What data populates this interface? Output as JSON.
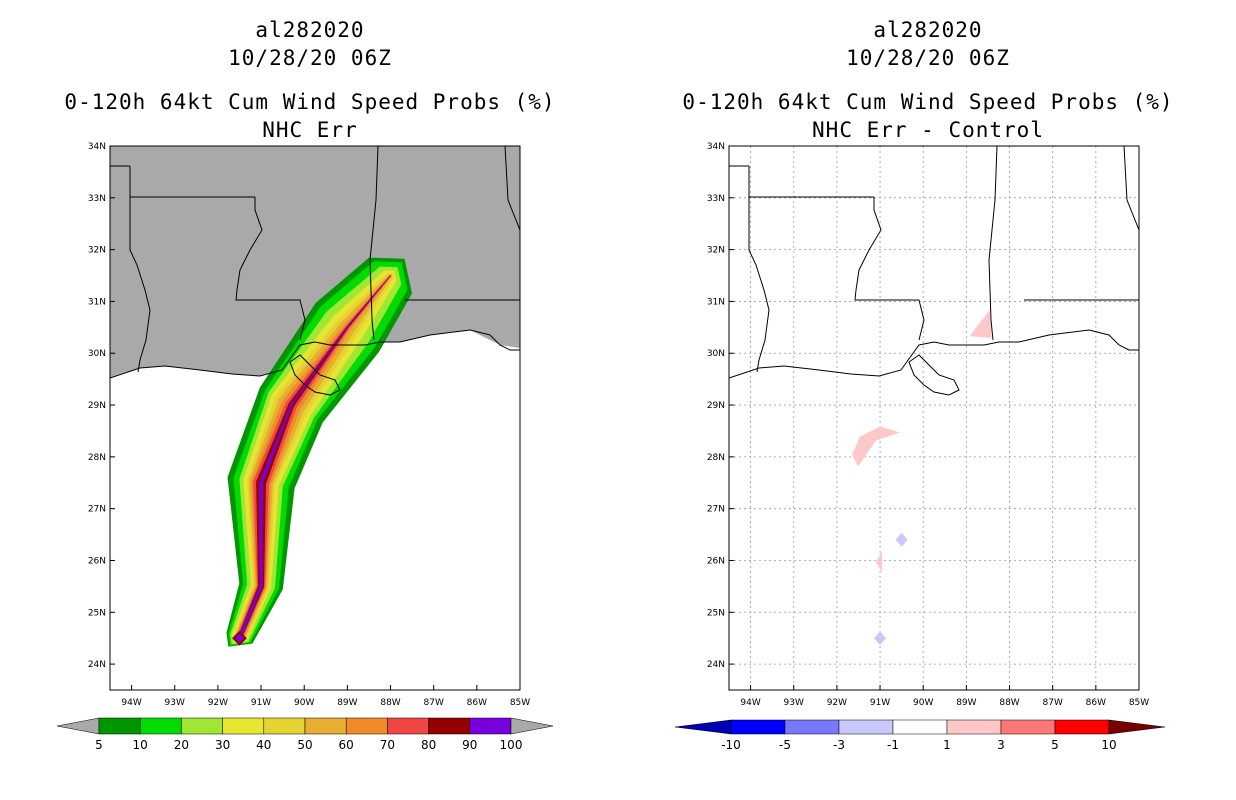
{
  "left_panel": {
    "title_line1": "al282020",
    "title_line2": "10/28/20 06Z",
    "title_line3": "0-120h 64kt Cum Wind Speed Probs (%)",
    "title_line4": "NHC Err"
  },
  "right_panel": {
    "title_line1": "al282020",
    "title_line2": "10/28/20 06Z",
    "title_line3": "0-120h 64kt Cum Wind Speed Probs (%)",
    "title_line4": "NHC Err - Control"
  },
  "axes": {
    "lat_labels": [
      "34N",
      "33N",
      "32N",
      "31N",
      "30N",
      "29N",
      "28N",
      "27N",
      "26N",
      "25N",
      "24N"
    ],
    "lon_labels": [
      "94W",
      "93W",
      "92W",
      "91W",
      "90W",
      "89W",
      "88W",
      "87W",
      "86W",
      "85W"
    ]
  },
  "colors": {
    "land": "#a9a9a9",
    "frame": "#000000",
    "left_bar": [
      "#009600",
      "#00dc00",
      "#a0e632",
      "#e6e632",
      "#e6d232",
      "#e6af32",
      "#f08c28",
      "#f04646",
      "#960000",
      "#7800dc"
    ],
    "right_bar": [
      "#0000b4",
      "#0000ff",
      "#7878ff",
      "#c8c8ff",
      "#ffffff",
      "#ffc8c8",
      "#ff7878",
      "#ff0000",
      "#780000"
    ]
  },
  "chart_data": [
    {
      "type": "heatmap",
      "title": "0-120h 64kt Cum Wind Speed Probs (%)",
      "subtitle": "NHC Err",
      "xlim": [
        -94.5,
        -85
      ],
      "ylim": [
        23.5,
        34
      ],
      "x_ticks": [
        "94W",
        "93W",
        "92W",
        "91W",
        "90W",
        "89W",
        "88W",
        "87W",
        "86W",
        "85W"
      ],
      "y_ticks": [
        "34N",
        "33N",
        "32N",
        "31N",
        "30N",
        "29N",
        "28N",
        "27N",
        "26N",
        "25N",
        "24N"
      ],
      "colorbar_labels": [
        "5",
        "10",
        "20",
        "30",
        "40",
        "50",
        "60",
        "70",
        "80",
        "90",
        "100"
      ],
      "track_points": [
        {
          "lon": -91.5,
          "lat": 24.5
        },
        {
          "lon": -91.0,
          "lat": 25.5
        },
        {
          "lon": -91.0,
          "lat": 27.5
        },
        {
          "lon": -90.3,
          "lat": 29.0
        },
        {
          "lon": -89.0,
          "lat": 30.5
        },
        {
          "lon": -88.0,
          "lat": 31.5
        }
      ],
      "peak_value_pct": 100
    },
    {
      "type": "heatmap",
      "title": "0-120h 64kt Cum Wind Speed Probs (%)",
      "subtitle": "NHC Err - Control",
      "xlim": [
        -94.5,
        -85
      ],
      "ylim": [
        23.5,
        34
      ],
      "x_ticks": [
        "94W",
        "93W",
        "92W",
        "91W",
        "90W",
        "89W",
        "88W",
        "87W",
        "86W",
        "85W"
      ],
      "y_ticks": [
        "34N",
        "33N",
        "32N",
        "31N",
        "30N",
        "29N",
        "28N",
        "27N",
        "26N",
        "25N",
        "24N"
      ],
      "colorbar_labels": [
        "-10",
        "-5",
        "-3",
        "-1",
        "1",
        "3",
        "5",
        "10"
      ],
      "grid": true,
      "difference_regions": [
        {
          "sign": "positive",
          "range": "1 to 3",
          "lon": -88.6,
          "lat": 30.6
        },
        {
          "sign": "positive",
          "range": "1 to 3",
          "lon": -91.0,
          "lat": 28.2
        },
        {
          "sign": "positive",
          "range": "1 to 3",
          "lon": -91.0,
          "lat": 26.0
        },
        {
          "sign": "negative",
          "range": "-3 to -1",
          "lon": -90.5,
          "lat": 26.4
        },
        {
          "sign": "negative",
          "range": "-3 to -1",
          "lon": -91.0,
          "lat": 24.5
        }
      ]
    }
  ]
}
